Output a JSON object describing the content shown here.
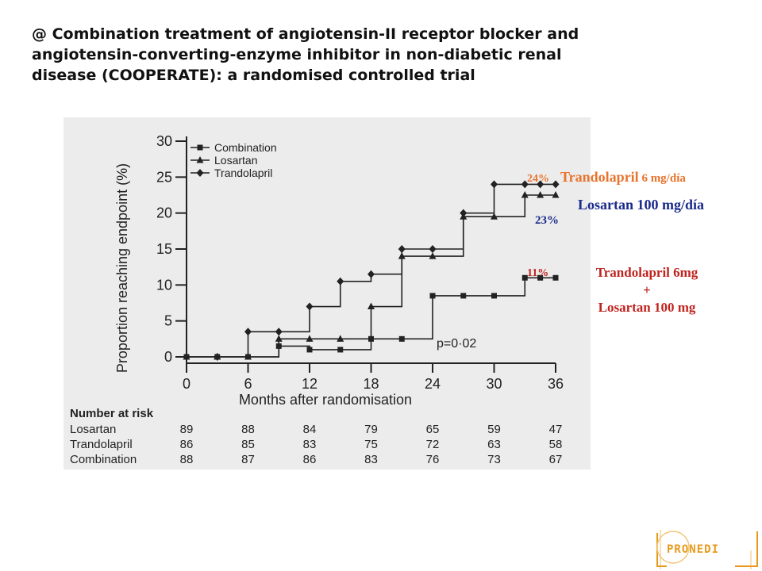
{
  "title_lines": [
    "@ Combination treatment of angiotensin-II receptor blocker and",
    "angiotensin-converting-enzyme inhibitor in non-diabetic renal",
    "disease (COOPERATE): a randomised controlled trial"
  ],
  "chart_data": {
    "type": "line",
    "step": true,
    "xlabel": "Months after randomisation",
    "ylabel": "Proportion reaching endpoint (%)",
    "xlim": [
      0,
      36
    ],
    "ylim": [
      0,
      30
    ],
    "x_ticks": [
      "0",
      "6",
      "12",
      "18",
      "24",
      "30",
      "36"
    ],
    "y_ticks": [
      "0",
      "5",
      "10",
      "15",
      "20",
      "25",
      "30"
    ],
    "legend_position": "top-left",
    "p_value_label": "p=0·02",
    "series": [
      {
        "name": "Combination",
        "marker": "square",
        "x": [
          0,
          3,
          6,
          9,
          12,
          15,
          18,
          21,
          24,
          27,
          30,
          33,
          34.5,
          36
        ],
        "y": [
          0,
          0,
          0,
          1.5,
          1,
          1,
          2.5,
          2.5,
          8.5,
          8.5,
          8.5,
          11,
          11,
          11
        ]
      },
      {
        "name": "Losartan",
        "marker": "triangle",
        "x": [
          0,
          3,
          6,
          9,
          12,
          15,
          18,
          21,
          24,
          27,
          30,
          33,
          34.5,
          36
        ],
        "y": [
          0,
          0,
          0,
          2.5,
          2.5,
          2.5,
          7,
          14,
          14,
          19.5,
          19.5,
          22.5,
          22.5,
          22.5
        ]
      },
      {
        "name": "Trandolapril",
        "marker": "diamond",
        "x": [
          0,
          3,
          6,
          9,
          12,
          15,
          18,
          21,
          24,
          27,
          30,
          33,
          34.5,
          36
        ],
        "y": [
          0,
          0,
          3.5,
          3.5,
          7,
          10.5,
          11.5,
          15,
          15,
          20,
          24,
          24,
          24,
          24
        ]
      }
    ],
    "risk_table": {
      "header": "Number at risk",
      "rows": [
        {
          "label": "Losartan",
          "values": [
            "89",
            "88",
            "84",
            "79",
            "65",
            "59",
            "47"
          ]
        },
        {
          "label": "Trandolapril",
          "values": [
            "86",
            "85",
            "83",
            "75",
            "72",
            "63",
            "58"
          ]
        },
        {
          "label": "Combination",
          "values": [
            "88",
            "87",
            "86",
            "83",
            "76",
            "73",
            "67"
          ]
        }
      ]
    }
  },
  "annotations": {
    "trandolapril_pct": "24%",
    "trandolapril_name": "Trandolapril",
    "trandolapril_dose": " 6 mg/día",
    "losartan_label": "Losartan 100 mg/día",
    "losartan_pct": "23%",
    "combination_pct": "11%",
    "combination_line1": "Trandolapril 6mg",
    "combination_line2": "+",
    "combination_line3": "Losartan 100 mg"
  },
  "colors": {
    "trandolapril_annotation": "#e8732c",
    "losartan_annotation": "#1a2a8a",
    "combination_annotation": "#c0231e",
    "chart_background": "#ececec",
    "logo": "#e89a1c"
  },
  "logo": {
    "text": "PRONEDI"
  }
}
